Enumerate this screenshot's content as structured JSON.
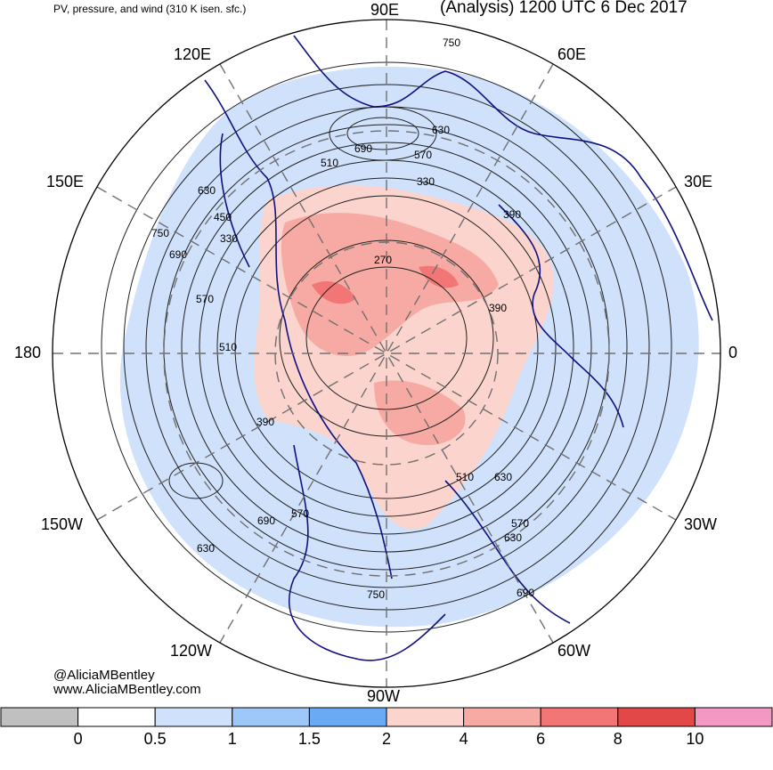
{
  "header": {
    "left_title": "PV, pressure, and wind (310 K isen. sfc.)",
    "right_title": "(Analysis) 1200 UTC 6 Dec 2017"
  },
  "longitude_labels": {
    "n": "90E",
    "ne_upper": "60E",
    "ne_lower": "30E",
    "e": "0",
    "se_upper": "30W",
    "se_lower": "60W",
    "s": "90W",
    "sw_lower": "120W",
    "sw_upper": "150W",
    "w": "180",
    "nw_lower": "150E",
    "nw_upper": "120E"
  },
  "pressure_labels": [
    "750",
    "630",
    "690",
    "570",
    "510",
    "330",
    "390",
    "450",
    "270",
    "750",
    "690",
    "630",
    "570",
    "510",
    "330",
    "390",
    "630",
    "510",
    "570",
    "630",
    "690",
    "750",
    "690",
    "630",
    "570",
    "390"
  ],
  "credits": {
    "handle": "@AliciaMBentley",
    "site": "www.AliciaMBentley.com"
  },
  "colorbar": {
    "colors": [
      "#c0c0c0",
      "#ffffff",
      "#cfe1fb",
      "#9ec8f7",
      "#6aaaf5",
      "#fbd4ce",
      "#f7aaa3",
      "#f27676",
      "#e24848",
      "#f298c2"
    ],
    "labels": [
      "0",
      "0.5",
      "1",
      "1.5",
      "2",
      "4",
      "6",
      "8",
      "10"
    ]
  },
  "colors": {
    "coast": "#101080",
    "contour": "#202020",
    "grid": "#707070"
  }
}
